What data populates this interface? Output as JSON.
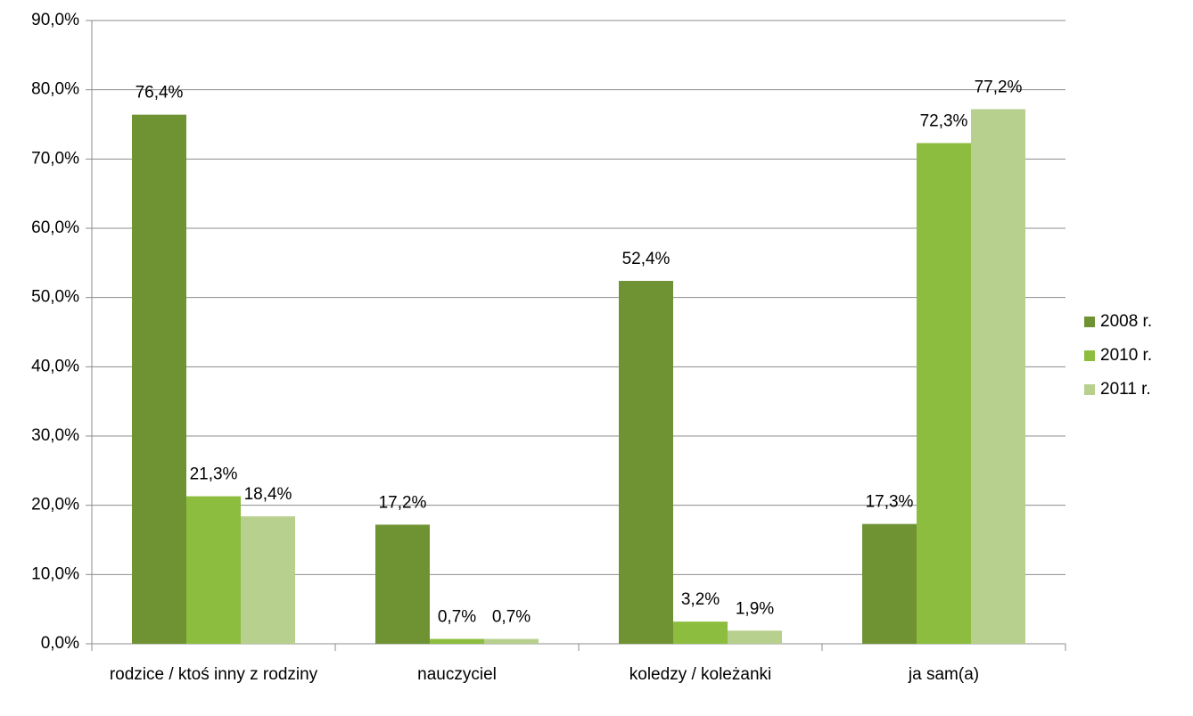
{
  "chart_data": {
    "type": "bar",
    "categories": [
      "rodzice / ktoś inny z rodziny",
      "nauczyciel",
      "koledzy / koleżanki",
      "ja sam(a)"
    ],
    "series": [
      {
        "name": "2008 r.",
        "color": "#6f9233",
        "values": [
          76.4,
          17.2,
          52.4,
          17.3
        ],
        "value_labels": [
          "76,4%",
          "17,2%",
          "52,4%",
          "17,3%"
        ]
      },
      {
        "name": "2010 r.",
        "color": "#8dbd3f",
        "values": [
          21.3,
          0.7,
          3.2,
          72.3
        ],
        "value_labels": [
          "21,3%",
          "0,7%",
          "3,2%",
          "72,3%"
        ]
      },
      {
        "name": "2011 r.",
        "color": "#b8d08e",
        "values": [
          18.4,
          0.7,
          1.9,
          77.2
        ],
        "value_labels": [
          "18,4%",
          "0,7%",
          "1,9%",
          "77,2%"
        ]
      }
    ],
    "ylim": [
      0,
      90
    ],
    "yticks": [
      {
        "value": 0,
        "label": "0,0%"
      },
      {
        "value": 10,
        "label": "10,0%"
      },
      {
        "value": 20,
        "label": "20,0%"
      },
      {
        "value": 30,
        "label": "30,0%"
      },
      {
        "value": 40,
        "label": "40,0%"
      },
      {
        "value": 50,
        "label": "50,0%"
      },
      {
        "value": 60,
        "label": "60,0%"
      },
      {
        "value": 70,
        "label": "70,0%"
      },
      {
        "value": 80,
        "label": "80,0%"
      },
      {
        "value": 90,
        "label": "90,0%"
      }
    ],
    "grid": true,
    "legend": "right"
  }
}
